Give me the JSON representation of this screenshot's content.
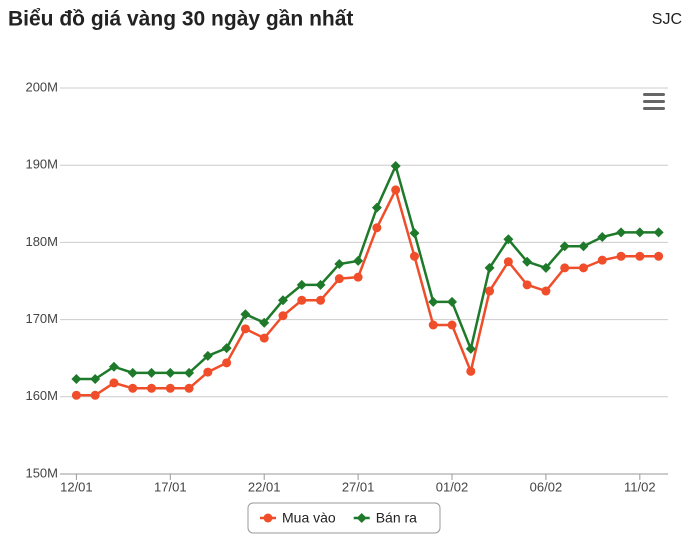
{
  "chart_data": {
    "type": "line",
    "title": "Biểu đồ giá vàng 30 ngày gần nhất",
    "subtitle": "SJC",
    "categories": [
      "12/01",
      null,
      null,
      null,
      null,
      "17/01",
      null,
      null,
      null,
      null,
      "22/01",
      null,
      null,
      null,
      null,
      "27/01",
      null,
      null,
      null,
      null,
      "01/02",
      null,
      null,
      null,
      null,
      "06/02",
      null,
      null,
      null,
      null,
      "11/02",
      null
    ],
    "series": [
      {
        "name": "Mua vào",
        "color": "#f04e2a",
        "marker": "circle",
        "values": [
          160.2,
          160.2,
          161.8,
          161.1,
          161.1,
          161.1,
          161.1,
          163.2,
          164.4,
          168.8,
          167.6,
          170.5,
          172.5,
          172.5,
          175.3,
          175.5,
          181.9,
          186.8,
          178.2,
          169.3,
          169.3,
          163.3,
          173.7,
          177.5,
          174.5,
          173.7,
          176.7,
          176.7,
          177.7,
          178.2,
          178.2,
          178.2
        ]
      },
      {
        "name": "Bán ra",
        "color": "#1e7a2a",
        "marker": "diamond",
        "values": [
          162.3,
          162.3,
          163.9,
          163.1,
          163.1,
          163.1,
          163.1,
          165.3,
          166.3,
          170.7,
          169.6,
          172.5,
          174.5,
          174.5,
          177.2,
          177.6,
          184.5,
          189.9,
          181.2,
          172.3,
          172.3,
          166.2,
          176.7,
          180.4,
          177.5,
          176.7,
          179.5,
          179.5,
          180.7,
          181.3,
          181.3,
          181.3
        ]
      }
    ],
    "ylim": [
      150,
      200
    ],
    "yticks": [
      {
        "value": 150,
        "label": "150M"
      },
      {
        "value": 160,
        "label": "160M"
      },
      {
        "value": 170,
        "label": "170M"
      },
      {
        "value": 180,
        "label": "180M"
      },
      {
        "value": 190,
        "label": "190M"
      },
      {
        "value": 200,
        "label": "200M"
      }
    ],
    "grid": true,
    "legend": "bottom"
  }
}
